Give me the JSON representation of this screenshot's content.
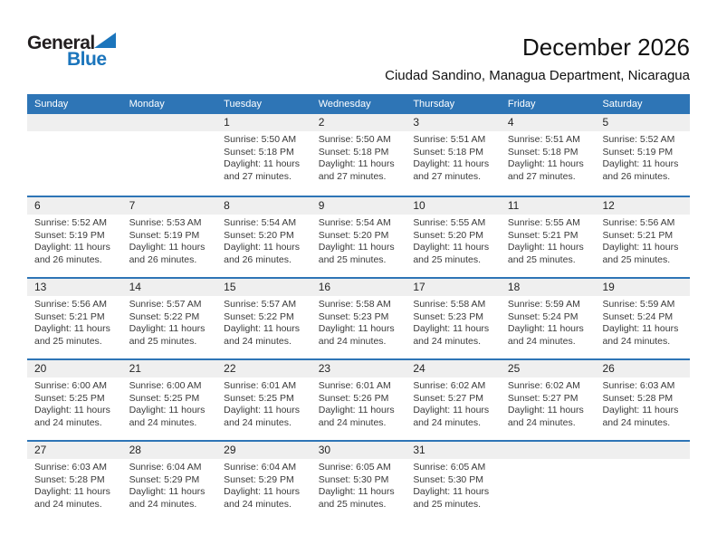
{
  "logo": {
    "line1": "General",
    "line2": "Blue"
  },
  "header": {
    "title": "December 2026",
    "subtitle": "Ciudad Sandino, Managua Department, Nicaragua"
  },
  "colors": {
    "header_blue": "#2e75b6",
    "logo_blue": "#1b75bc",
    "band_gray": "#efefef",
    "detail_text": "#3a3a3a"
  },
  "weekdays": [
    "Sunday",
    "Monday",
    "Tuesday",
    "Wednesday",
    "Thursday",
    "Friday",
    "Saturday"
  ],
  "weeks": [
    {
      "days": [
        null,
        null,
        {
          "day": "1",
          "sunrise": "Sunrise: 5:50 AM",
          "sunset": "Sunset: 5:18 PM",
          "daylight": "Daylight: 11 hours and 27 minutes."
        },
        {
          "day": "2",
          "sunrise": "Sunrise: 5:50 AM",
          "sunset": "Sunset: 5:18 PM",
          "daylight": "Daylight: 11 hours and 27 minutes."
        },
        {
          "day": "3",
          "sunrise": "Sunrise: 5:51 AM",
          "sunset": "Sunset: 5:18 PM",
          "daylight": "Daylight: 11 hours and 27 minutes."
        },
        {
          "day": "4",
          "sunrise": "Sunrise: 5:51 AM",
          "sunset": "Sunset: 5:18 PM",
          "daylight": "Daylight: 11 hours and 27 minutes."
        },
        {
          "day": "5",
          "sunrise": "Sunrise: 5:52 AM",
          "sunset": "Sunset: 5:19 PM",
          "daylight": "Daylight: 11 hours and 26 minutes."
        }
      ]
    },
    {
      "days": [
        {
          "day": "6",
          "sunrise": "Sunrise: 5:52 AM",
          "sunset": "Sunset: 5:19 PM",
          "daylight": "Daylight: 11 hours and 26 minutes."
        },
        {
          "day": "7",
          "sunrise": "Sunrise: 5:53 AM",
          "sunset": "Sunset: 5:19 PM",
          "daylight": "Daylight: 11 hours and 26 minutes."
        },
        {
          "day": "8",
          "sunrise": "Sunrise: 5:54 AM",
          "sunset": "Sunset: 5:20 PM",
          "daylight": "Daylight: 11 hours and 26 minutes."
        },
        {
          "day": "9",
          "sunrise": "Sunrise: 5:54 AM",
          "sunset": "Sunset: 5:20 PM",
          "daylight": "Daylight: 11 hours and 25 minutes."
        },
        {
          "day": "10",
          "sunrise": "Sunrise: 5:55 AM",
          "sunset": "Sunset: 5:20 PM",
          "daylight": "Daylight: 11 hours and 25 minutes."
        },
        {
          "day": "11",
          "sunrise": "Sunrise: 5:55 AM",
          "sunset": "Sunset: 5:21 PM",
          "daylight": "Daylight: 11 hours and 25 minutes."
        },
        {
          "day": "12",
          "sunrise": "Sunrise: 5:56 AM",
          "sunset": "Sunset: 5:21 PM",
          "daylight": "Daylight: 11 hours and 25 minutes."
        }
      ]
    },
    {
      "days": [
        {
          "day": "13",
          "sunrise": "Sunrise: 5:56 AM",
          "sunset": "Sunset: 5:21 PM",
          "daylight": "Daylight: 11 hours and 25 minutes."
        },
        {
          "day": "14",
          "sunrise": "Sunrise: 5:57 AM",
          "sunset": "Sunset: 5:22 PM",
          "daylight": "Daylight: 11 hours and 25 minutes."
        },
        {
          "day": "15",
          "sunrise": "Sunrise: 5:57 AM",
          "sunset": "Sunset: 5:22 PM",
          "daylight": "Daylight: 11 hours and 24 minutes."
        },
        {
          "day": "16",
          "sunrise": "Sunrise: 5:58 AM",
          "sunset": "Sunset: 5:23 PM",
          "daylight": "Daylight: 11 hours and 24 minutes."
        },
        {
          "day": "17",
          "sunrise": "Sunrise: 5:58 AM",
          "sunset": "Sunset: 5:23 PM",
          "daylight": "Daylight: 11 hours and 24 minutes."
        },
        {
          "day": "18",
          "sunrise": "Sunrise: 5:59 AM",
          "sunset": "Sunset: 5:24 PM",
          "daylight": "Daylight: 11 hours and 24 minutes."
        },
        {
          "day": "19",
          "sunrise": "Sunrise: 5:59 AM",
          "sunset": "Sunset: 5:24 PM",
          "daylight": "Daylight: 11 hours and 24 minutes."
        }
      ]
    },
    {
      "days": [
        {
          "day": "20",
          "sunrise": "Sunrise: 6:00 AM",
          "sunset": "Sunset: 5:25 PM",
          "daylight": "Daylight: 11 hours and 24 minutes."
        },
        {
          "day": "21",
          "sunrise": "Sunrise: 6:00 AM",
          "sunset": "Sunset: 5:25 PM",
          "daylight": "Daylight: 11 hours and 24 minutes."
        },
        {
          "day": "22",
          "sunrise": "Sunrise: 6:01 AM",
          "sunset": "Sunset: 5:25 PM",
          "daylight": "Daylight: 11 hours and 24 minutes."
        },
        {
          "day": "23",
          "sunrise": "Sunrise: 6:01 AM",
          "sunset": "Sunset: 5:26 PM",
          "daylight": "Daylight: 11 hours and 24 minutes."
        },
        {
          "day": "24",
          "sunrise": "Sunrise: 6:02 AM",
          "sunset": "Sunset: 5:27 PM",
          "daylight": "Daylight: 11 hours and 24 minutes."
        },
        {
          "day": "25",
          "sunrise": "Sunrise: 6:02 AM",
          "sunset": "Sunset: 5:27 PM",
          "daylight": "Daylight: 11 hours and 24 minutes."
        },
        {
          "day": "26",
          "sunrise": "Sunrise: 6:03 AM",
          "sunset": "Sunset: 5:28 PM",
          "daylight": "Daylight: 11 hours and 24 minutes."
        }
      ]
    },
    {
      "days": [
        {
          "day": "27",
          "sunrise": "Sunrise: 6:03 AM",
          "sunset": "Sunset: 5:28 PM",
          "daylight": "Daylight: 11 hours and 24 minutes."
        },
        {
          "day": "28",
          "sunrise": "Sunrise: 6:04 AM",
          "sunset": "Sunset: 5:29 PM",
          "daylight": "Daylight: 11 hours and 24 minutes."
        },
        {
          "day": "29",
          "sunrise": "Sunrise: 6:04 AM",
          "sunset": "Sunset: 5:29 PM",
          "daylight": "Daylight: 11 hours and 24 minutes."
        },
        {
          "day": "30",
          "sunrise": "Sunrise: 6:05 AM",
          "sunset": "Sunset: 5:30 PM",
          "daylight": "Daylight: 11 hours and 25 minutes."
        },
        {
          "day": "31",
          "sunrise": "Sunrise: 6:05 AM",
          "sunset": "Sunset: 5:30 PM",
          "daylight": "Daylight: 11 hours and 25 minutes."
        },
        null,
        null
      ]
    }
  ]
}
